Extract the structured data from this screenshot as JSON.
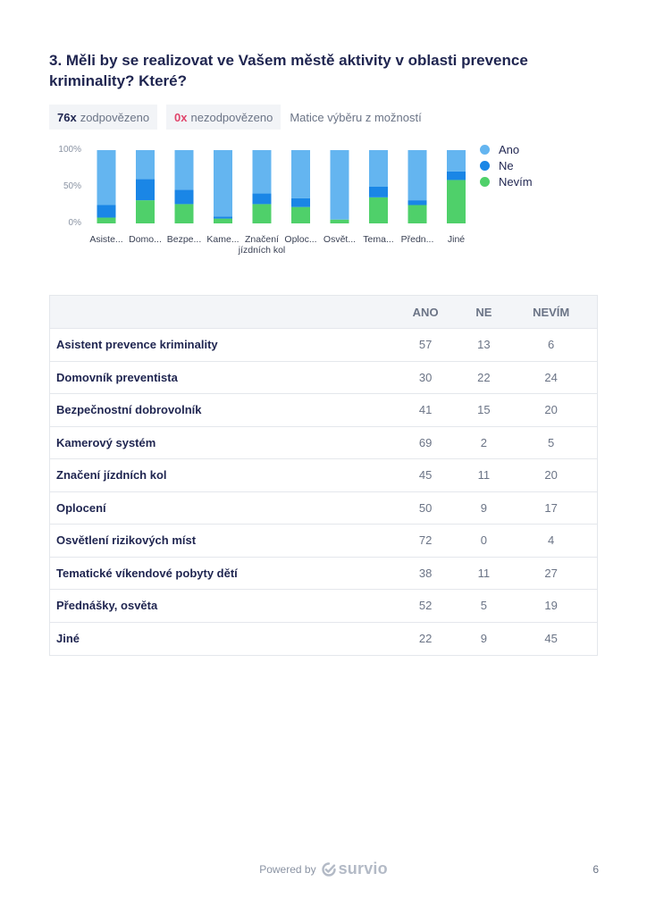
{
  "question": {
    "title": "3. Měli by se realizovat ve Vašem městě aktivity v oblasti prevence kriminality? Které?"
  },
  "stats": {
    "answered_count": "76x",
    "answered_label": "zodpovězeno",
    "unanswered_count": "0x",
    "unanswered_label": "nezodpovězeno",
    "type_label": "Matice výběru z možností"
  },
  "chart_data": {
    "type": "bar",
    "stacked": true,
    "normalized": true,
    "categories": [
      "Asiste...",
      "Domo...",
      "Bezpe...",
      "Kame...",
      "Značení jízdních kol",
      "Oploc...",
      "Osvět...",
      "Tema...",
      "Předn...",
      "Jiné"
    ],
    "series": [
      {
        "name": "Ano",
        "color": "#64b5f0",
        "values": [
          57,
          30,
          41,
          69,
          45,
          50,
          72,
          38,
          52,
          22
        ]
      },
      {
        "name": "Ne",
        "color": "#1a86e6",
        "values": [
          13,
          22,
          15,
          2,
          11,
          9,
          0,
          11,
          5,
          9
        ]
      },
      {
        "name": "Nevím",
        "color": "#4fd06a",
        "values": [
          6,
          24,
          20,
          5,
          20,
          17,
          4,
          27,
          19,
          45
        ]
      }
    ],
    "yticks": [
      "100%",
      "50%",
      "0%"
    ],
    "ylim": [
      0,
      100
    ],
    "legend_position": "right"
  },
  "table": {
    "headers": {
      "ano": "ANO",
      "ne": "NE",
      "nevim": "NEVÍM"
    },
    "rows": [
      {
        "label": "Asistent prevence kriminality",
        "ano": "57",
        "ne": "13",
        "nevim": "6"
      },
      {
        "label": "Domovník preventista",
        "ano": "30",
        "ne": "22",
        "nevim": "24"
      },
      {
        "label": "Bezpečnostní dobrovolník",
        "ano": "41",
        "ne": "15",
        "nevim": "20"
      },
      {
        "label": "Kamerový systém",
        "ano": "69",
        "ne": "2",
        "nevim": "5"
      },
      {
        "label": "Značení jízdních kol",
        "ano": "45",
        "ne": "11",
        "nevim": "20"
      },
      {
        "label": "Oplocení",
        "ano": "50",
        "ne": "9",
        "nevim": "17"
      },
      {
        "label": "Osvětlení rizikových míst",
        "ano": "72",
        "ne": "0",
        "nevim": "4"
      },
      {
        "label": "Tematické víkendové pobyty dětí",
        "ano": "38",
        "ne": "11",
        "nevim": "27"
      },
      {
        "label": "Přednášky, osvěta",
        "ano": "52",
        "ne": "5",
        "nevim": "19"
      },
      {
        "label": "Jiné",
        "ano": "22",
        "ne": "9",
        "nevim": "45"
      }
    ]
  },
  "footer": {
    "powered_by": "Powered by",
    "brand": "survio",
    "brand_icon": "survio-check-icon",
    "page_number": "6"
  }
}
